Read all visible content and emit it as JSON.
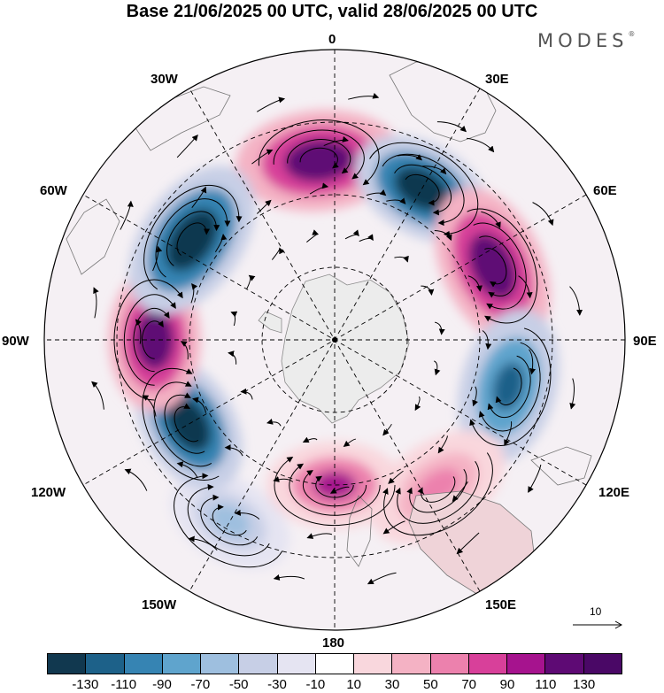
{
  "title": "Base 21/06/2025 00 UTC, valid 28/06/2025 00 UTC",
  "brand": "MODES",
  "brand_mark": "®",
  "map": {
    "projection": "south-polar-stereographic",
    "longitude_labels": {
      "top": "0",
      "top_right": "30E",
      "right_upper": "60E",
      "right": "90E",
      "right_lower": "120E",
      "bottom_right": "150E",
      "bottom": "180",
      "bottom_left": "150W",
      "left_lower": "120W",
      "left": "90W",
      "left_upper": "60W",
      "top_left": "30W"
    },
    "reference_vector": "10",
    "anomaly_centers": [
      {
        "sign": "positive",
        "sector": "20W-10E",
        "strength": "strong"
      },
      {
        "sign": "negative",
        "sector": "20E-40E",
        "strength": "strong"
      },
      {
        "sign": "positive",
        "sector": "50E-80E",
        "strength": "strong"
      },
      {
        "sign": "negative",
        "sector": "90E-120E",
        "strength": "moderate"
      },
      {
        "sign": "positive",
        "sector": "130E-160E",
        "strength": "weak"
      },
      {
        "sign": "negative",
        "sector": "160W-140W",
        "strength": "weak"
      },
      {
        "sign": "positive",
        "sector": "170E-170W",
        "strength": "moderate"
      },
      {
        "sign": "negative",
        "sector": "110W-130W",
        "strength": "strong"
      },
      {
        "sign": "positive",
        "sector": "80W-100W",
        "strength": "strong"
      },
      {
        "sign": "negative",
        "sector": "40W-70W",
        "strength": "strong"
      }
    ]
  },
  "colorbar": {
    "ticks": [
      "-130",
      "-110",
      "-90",
      "-70",
      "-50",
      "-30",
      "-10",
      "10",
      "30",
      "50",
      "70",
      "90",
      "110",
      "130"
    ],
    "colors": [
      "#11384f",
      "#1d6189",
      "#3684b3",
      "#5fa4cd",
      "#9ebfdf",
      "#c7cfe6",
      "#e5e4f2",
      "#ffffff",
      "#f9d7dd",
      "#f4b2c4",
      "#ec81ad",
      "#d8409a",
      "#a6138e",
      "#5e0a74",
      "#4a0866"
    ]
  }
}
